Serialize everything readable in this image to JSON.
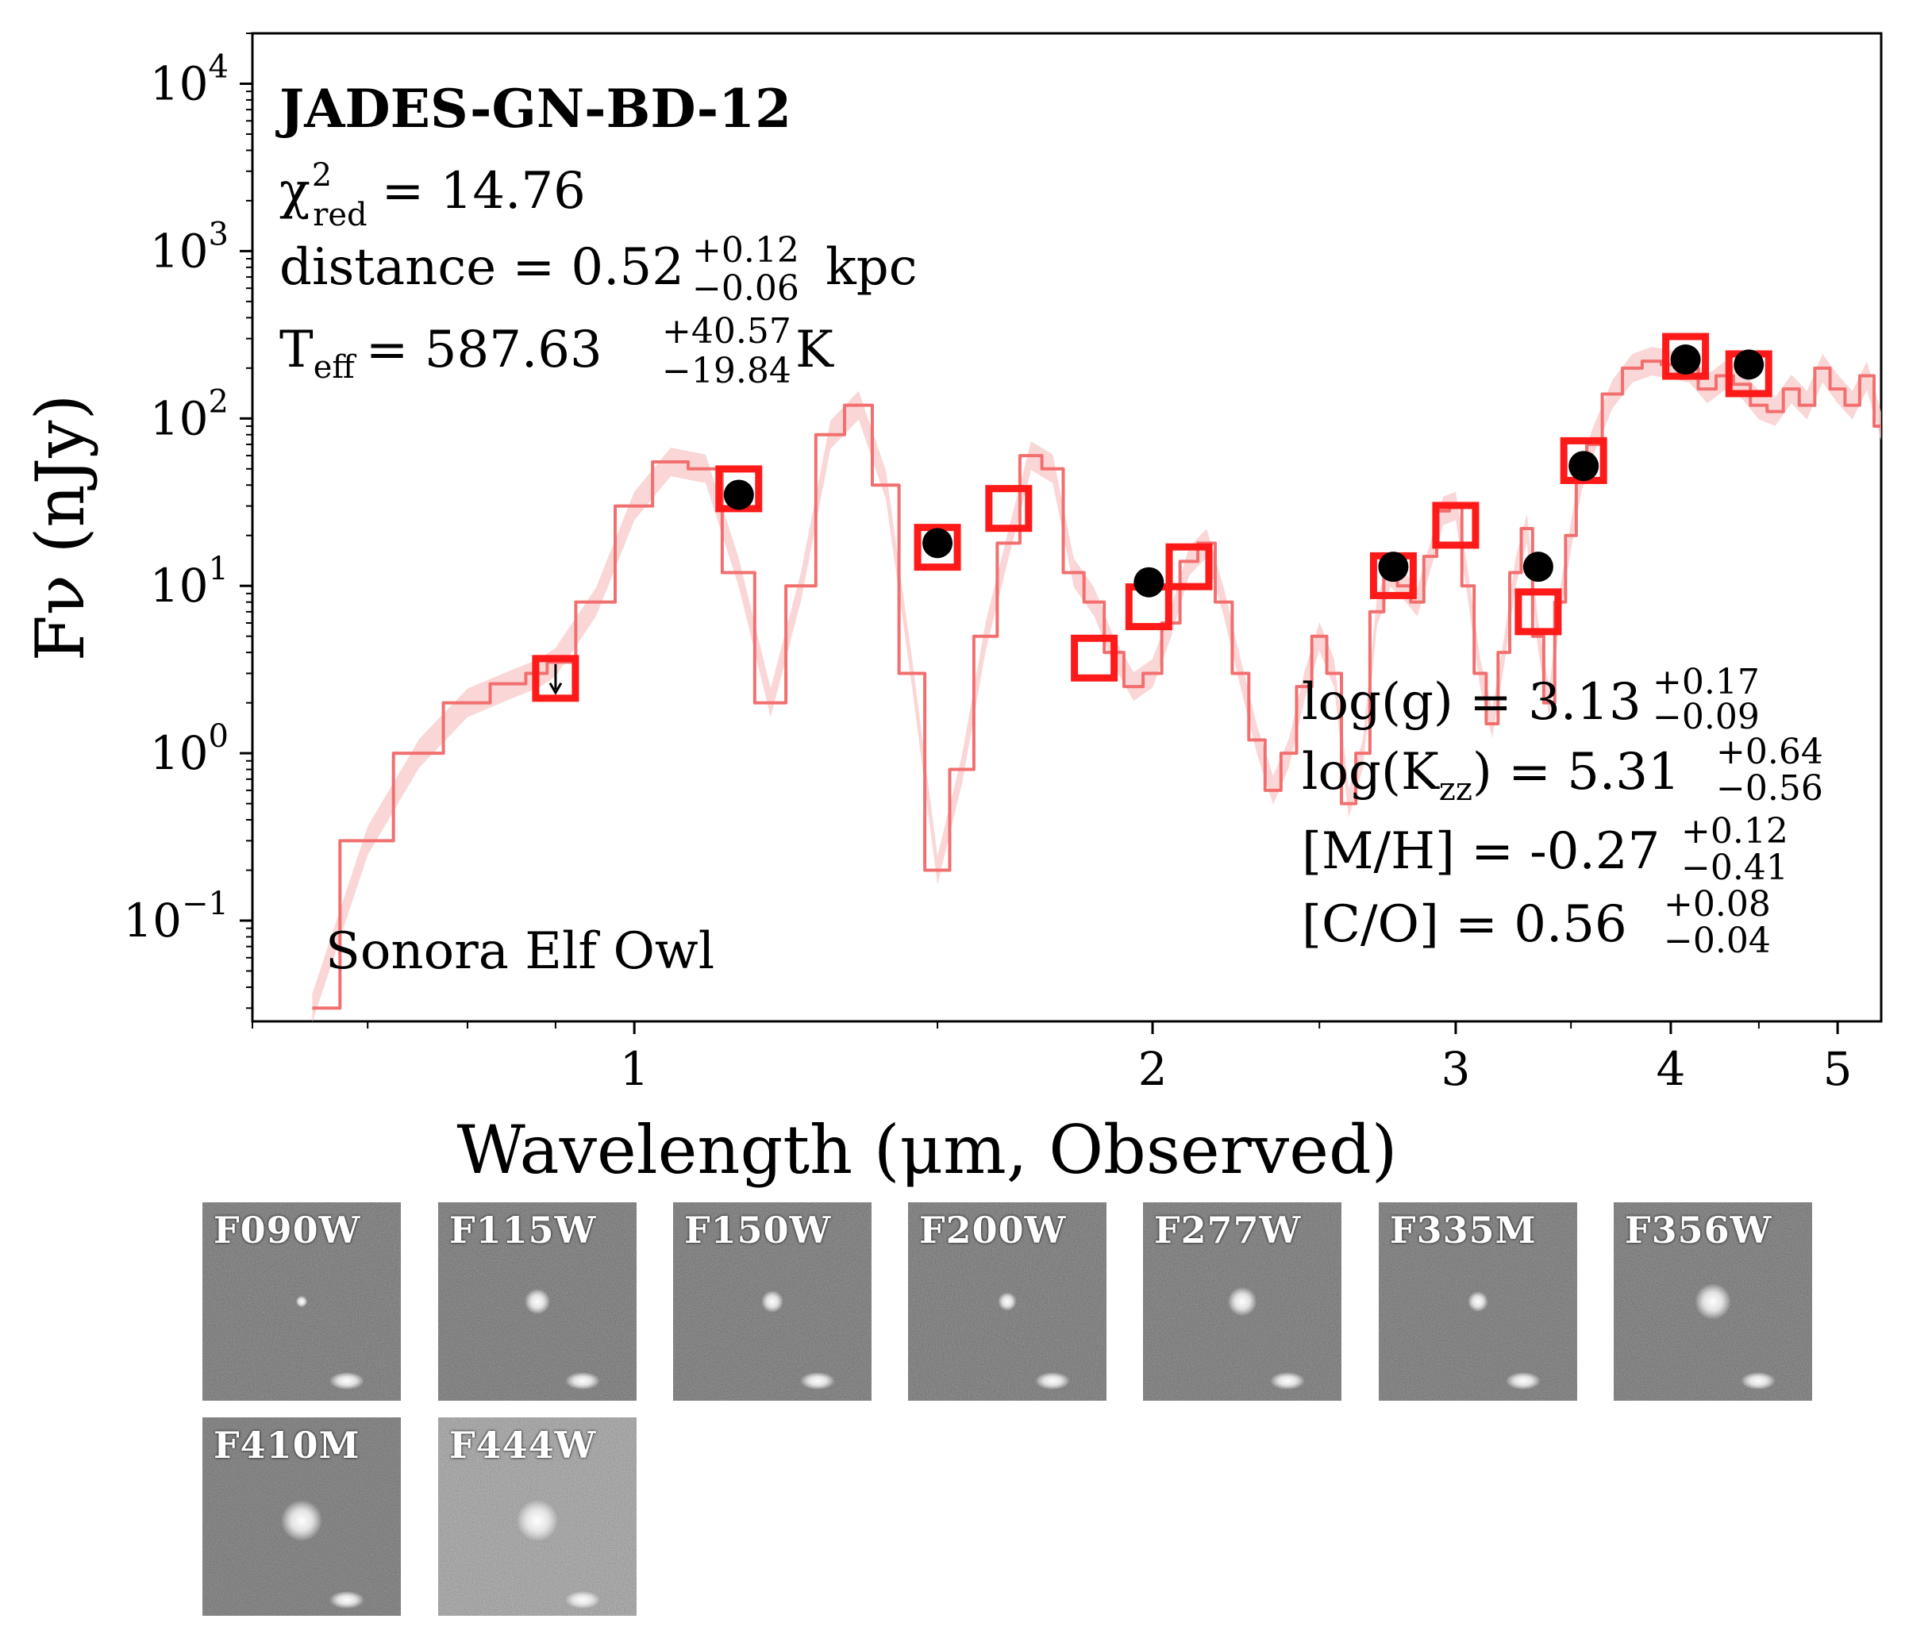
{
  "chart_data": {
    "type": "scatter",
    "title": "JADES-GN-BD-12",
    "xlabel": "Wavelength (μm, Observed)",
    "ylabel": "Fν (nJy)",
    "x_scale": "log",
    "y_scale": "log",
    "xlim": [
      0.6,
      5.3
    ],
    "ylim": [
      0.025,
      20000
    ],
    "x_ticks": [
      {
        "value": 1,
        "label": "1"
      },
      {
        "value": 2,
        "label": "2"
      },
      {
        "value": 3,
        "label": "3"
      },
      {
        "value": 4,
        "label": "4"
      },
      {
        "value": 5,
        "label": "5"
      }
    ],
    "y_ticks": [
      {
        "value": 0.1,
        "base": "10",
        "exp": "−1"
      },
      {
        "value": 1,
        "base": "10",
        "exp": "0"
      },
      {
        "value": 10,
        "base": "10",
        "exp": "1"
      },
      {
        "value": 100,
        "base": "10",
        "exp": "2"
      },
      {
        "value": 1000,
        "base": "10",
        "exp": "3"
      },
      {
        "value": 10000,
        "base": "10",
        "exp": "4"
      }
    ],
    "chi2_label": "χ",
    "chi2_sup": "2",
    "chi2_sub": "red",
    "chi2_value": "= 14.76",
    "distance": {
      "prefix": "distance = 0.52",
      "plus": "+0.12",
      "minus": "−0.06",
      "unit": "kpc"
    },
    "teff": {
      "prefix": "T",
      "sub": "eff",
      "value": "= 587.63",
      "plus": "+40.57",
      "minus": "−19.84",
      "unit": "K"
    },
    "params": [
      {
        "label": "log(g) = 3.13",
        "plus": "+0.17",
        "minus": "−0.09"
      },
      {
        "label": "log(K",
        "sub": "zz",
        "label2": ") = 5.31",
        "plus": "+0.64",
        "minus": "−0.56"
      },
      {
        "label": "[M/H] = -0.27",
        "plus": "+0.12",
        "minus": "−0.41"
      },
      {
        "label": "[C/O] = 0.56",
        "plus": "+0.08",
        "minus": "−0.04"
      }
    ],
    "model_name": "Sonora Elf Owl",
    "colors": {
      "model": "#f26f6f",
      "model_band": "#f8c4c4",
      "model_flux": "#ff1a1a",
      "observed": "#000000"
    },
    "model_spectrum": {
      "name": "Sonora Elf Owl best fit",
      "x": [
        0.65,
        0.7,
        0.75,
        0.8,
        0.85,
        0.88,
        0.9,
        0.95,
        1.0,
        1.05,
        1.1,
        1.15,
        1.2,
        1.25,
        1.3,
        1.35,
        1.4,
        1.45,
        1.5,
        1.55,
        1.6,
        1.65,
        1.7,
        1.75,
        1.8,
        1.85,
        1.9,
        1.95,
        2.0,
        2.05,
        2.1,
        2.15,
        2.2,
        2.25,
        2.3,
        2.35,
        2.4,
        2.45,
        2.5,
        2.55,
        2.6,
        2.65,
        2.7,
        2.75,
        2.8,
        2.85,
        2.9,
        2.95,
        3.0,
        3.05,
        3.1,
        3.15,
        3.2,
        3.25,
        3.3,
        3.35,
        3.4,
        3.45,
        3.5,
        3.55,
        3.6,
        3.7,
        3.8,
        3.9,
        4.0,
        4.1,
        4.2,
        4.3,
        4.4,
        4.5,
        4.6,
        4.7,
        4.8,
        4.9,
        5.0,
        5.1,
        5.2,
        5.3
      ],
      "y": [
        0.03,
        0.3,
        1.0,
        2.0,
        2.6,
        3.0,
        3.5,
        8.0,
        30.0,
        55.0,
        50.0,
        12.0,
        2.0,
        10.0,
        80.0,
        120.0,
        40.0,
        3.0,
        0.2,
        0.8,
        5.0,
        18.0,
        60.0,
        50.0,
        12.0,
        8.0,
        4.0,
        2.5,
        3.0,
        6.0,
        14.0,
        18.0,
        8.0,
        3.0,
        1.2,
        0.6,
        1.0,
        2.5,
        5.0,
        3.0,
        0.5,
        1.0,
        7.0,
        12.0,
        10.0,
        8.0,
        15.0,
        28.0,
        30.0,
        10.0,
        3.0,
        1.5,
        4.0,
        12.0,
        22.0,
        5.0,
        2.0,
        8.0,
        20.0,
        45.0,
        70.0,
        140.0,
        200.0,
        220.0,
        210.0,
        200.0,
        150.0,
        180.0,
        160.0,
        120.0,
        110.0,
        150.0,
        120.0,
        200.0,
        150.0,
        120.0,
        180.0,
        90.0
      ]
    },
    "model_photometry": {
      "name": "Model photometry",
      "x": [
        0.9,
        1.15,
        1.5,
        1.65,
        1.85,
        1.99,
        2.1,
        2.76,
        3.0,
        3.35,
        3.56,
        4.08,
        4.44
      ],
      "y": [
        2.8,
        38,
        17,
        29,
        3.7,
        7.5,
        13,
        11.5,
        23,
        7.0,
        56,
        235,
        185
      ]
    },
    "observed": {
      "name": "Observed photometry",
      "x": [
        0.9,
        1.15,
        1.5,
        1.99,
        2.76,
        3.35,
        3.56,
        4.08,
        4.44
      ],
      "y": [
        2.8,
        35,
        18,
        10.5,
        13,
        13,
        52,
        225,
        210
      ],
      "upper_limit": [
        true,
        false,
        false,
        false,
        false,
        false,
        false,
        false,
        false
      ]
    }
  },
  "stamps": [
    {
      "label": "F090W",
      "brightness": 0.15
    },
    {
      "label": "F115W",
      "brightness": 0.55
    },
    {
      "label": "F150W",
      "brightness": 0.45
    },
    {
      "label": "F200W",
      "brightness": 0.35
    },
    {
      "label": "F277W",
      "brightness": 0.65
    },
    {
      "label": "F335M",
      "brightness": 0.4
    },
    {
      "label": "F356W",
      "brightness": 0.85
    },
    {
      "label": "F410M",
      "brightness": 1.0
    },
    {
      "label": "F444W",
      "brightness": 1.0
    }
  ]
}
